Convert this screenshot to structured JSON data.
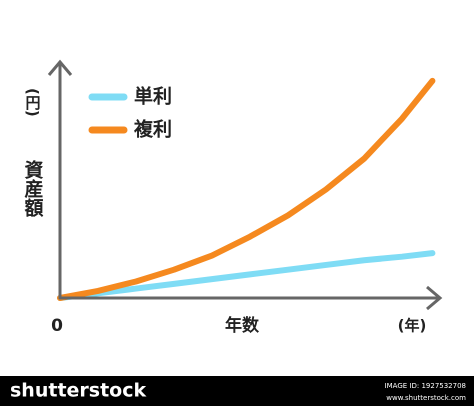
{
  "chart_data": {
    "type": "line",
    "y_label": "資産額",
    "y_unit": "(円)",
    "x_label": "年数",
    "x_unit": "(年)",
    "origin_label": "0",
    "x": [
      0,
      1,
      2,
      3,
      4,
      5,
      6,
      7,
      8,
      9,
      9.8
    ],
    "xlim": [
      0,
      10
    ],
    "ylim": [
      0,
      100
    ],
    "series": [
      {
        "name": "単利",
        "color": "#7fdcf5",
        "values": [
          0,
          2,
          4,
          6,
          8,
          10,
          12,
          14,
          16,
          17.5,
          19
        ]
      },
      {
        "name": "複利",
        "color": "#f5891f",
        "values": [
          0,
          3,
          7,
          12,
          18,
          26,
          35,
          46,
          59,
          76,
          92
        ]
      }
    ]
  },
  "footer": {
    "brand": "shutterstock",
    "image_id": "IMAGE ID: 1927532708",
    "site": "www.shutterstock.com"
  }
}
